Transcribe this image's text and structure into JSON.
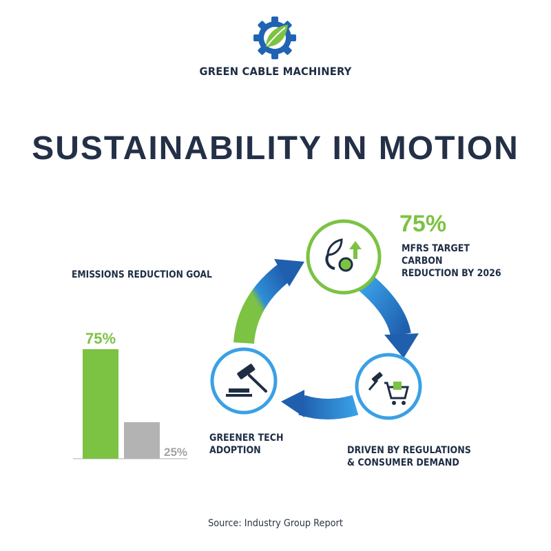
{
  "brand": {
    "name": "GREEN CABLE MACHINERY",
    "logo_icon": "gear-leaf-icon"
  },
  "title": "SUSTAINABILITY IN MOTION",
  "chart_data": {
    "type": "bar",
    "title": "EMISSIONS REDUCTION GOAL",
    "categories": [
      "",
      ""
    ],
    "values": [
      75,
      25
    ],
    "value_labels": [
      "75%",
      "25%"
    ],
    "colors": [
      "#7cc243",
      "#b3b3b3"
    ],
    "label_colors": [
      "#7cc243",
      "#a3a3a3"
    ],
    "ylim": [
      0,
      100
    ],
    "grid": false
  },
  "stat": {
    "value": "75%",
    "lines": [
      "MFRS TARGET",
      "CARBON",
      "REDUCTION BY 2026"
    ]
  },
  "cycle": {
    "nodes": [
      {
        "icon": "leaf-co2-arrow-icon"
      },
      {
        "icon": "gavel-cart-icon",
        "label_lines": [
          "DRIVEN BY REGULATIONS",
          "& CONSUMER DEMAND"
        ]
      },
      {
        "icon": "gavel-icon",
        "label_lines": [
          "GREENER TECH",
          "ADOPTION"
        ]
      }
    ],
    "colors": {
      "green": "#7cc243",
      "blue": "#2f8ed8",
      "dark_blue": "#1f5fae",
      "light_blue": "#3aa0e6"
    }
  },
  "source": "Source: Industry Group Report"
}
